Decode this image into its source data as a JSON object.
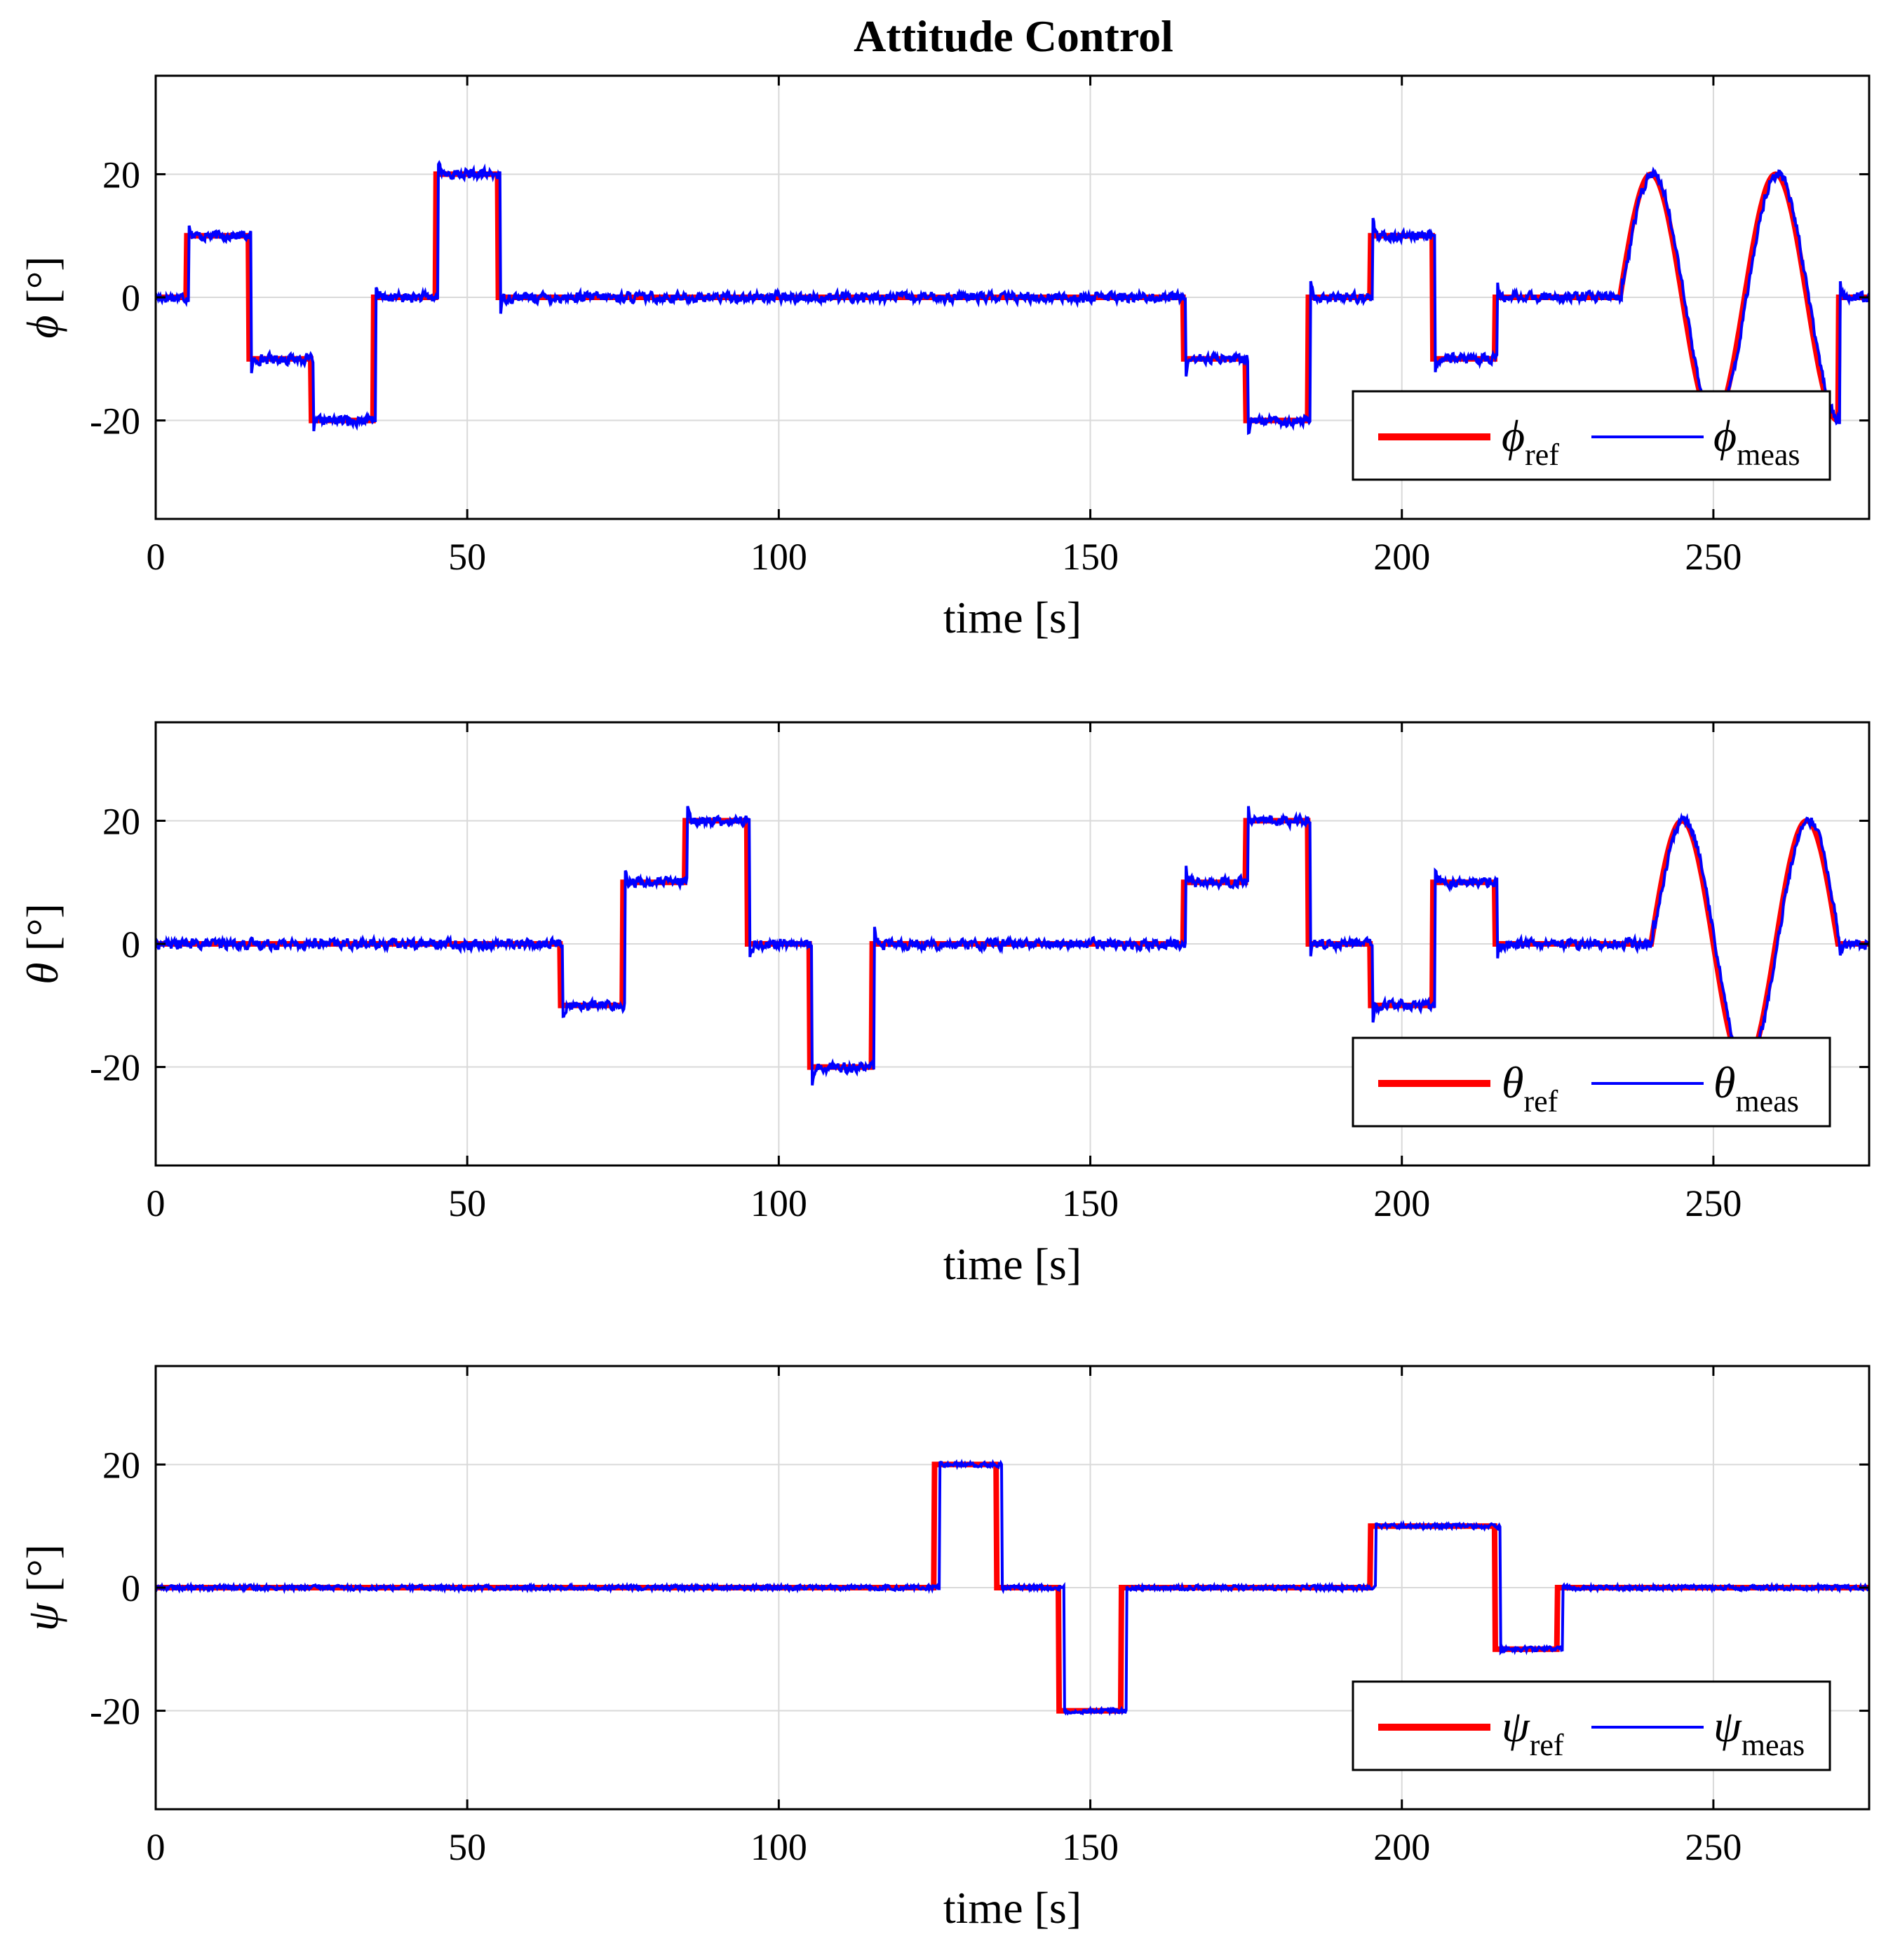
{
  "chart_data": {
    "title": "Attitude Control",
    "colors": {
      "ref": "#ff0000",
      "meas": "#0000ff",
      "grid": "#d9d9d9",
      "axis": "#000000"
    },
    "panels": [
      {
        "type": "line",
        "symbol": "ϕ",
        "ylabel_unit": " [°]",
        "xlabel": "time [s]",
        "xlim": [
          0,
          275
        ],
        "ylim": [
          -36,
          36
        ],
        "xticks": [
          0,
          50,
          100,
          150,
          200,
          250
        ],
        "xtick_labels": [
          "0",
          "50",
          "100",
          "150",
          "200",
          "250"
        ],
        "yticks": [
          20,
          0,
          -20
        ],
        "ytick_labels": [
          "20",
          "0",
          "-20"
        ],
        "grid": true,
        "legend_position": "bottom-right",
        "legend": [
          {
            "symbol": "ϕ",
            "subscript": "ref"
          },
          {
            "symbol": "ϕ",
            "subscript": "meas"
          }
        ],
        "series": [
          {
            "name": "ref",
            "segments": [
              {
                "kind": "step",
                "points": [
                  [
                    0,
                    0
                  ],
                  [
                    5,
                    10
                  ],
                  [
                    15,
                    -10
                  ],
                  [
                    25,
                    -20
                  ],
                  [
                    35,
                    0
                  ],
                  [
                    45,
                    20
                  ],
                  [
                    55,
                    0
                  ],
                  [
                    165,
                    -10
                  ],
                  [
                    175,
                    -20
                  ],
                  [
                    185,
                    0
                  ],
                  [
                    195,
                    10
                  ],
                  [
                    205,
                    -10
                  ],
                  [
                    215,
                    0
                  ],
                  [
                    235,
                    0
                  ]
                ]
              },
              {
                "kind": "sine",
                "start": 235,
                "end": 270,
                "amplitude": 20,
                "period": 20
              },
              {
                "kind": "step",
                "points": [
                  [
                    270,
                    0
                  ],
                  [
                    275,
                    0
                  ]
                ]
              }
            ]
          },
          {
            "name": "meas",
            "noise_std": 0.7,
            "derived_from": "ref",
            "overshoot_at_steps": 3,
            "lag_s": 0.3
          }
        ]
      },
      {
        "type": "line",
        "symbol": "θ",
        "ylabel_unit": " [°]",
        "xlabel": "time [s]",
        "xlim": [
          0,
          275
        ],
        "ylim": [
          -36,
          36
        ],
        "xticks": [
          0,
          50,
          100,
          150,
          200,
          250
        ],
        "xtick_labels": [
          "0",
          "50",
          "100",
          "150",
          "200",
          "250"
        ],
        "yticks": [
          20,
          0,
          -20
        ],
        "ytick_labels": [
          "20",
          "0",
          "-20"
        ],
        "grid": true,
        "legend_position": "bottom-right",
        "legend": [
          {
            "symbol": "θ",
            "subscript": "ref"
          },
          {
            "symbol": "θ",
            "subscript": "meas"
          }
        ],
        "series": [
          {
            "name": "ref",
            "segments": [
              {
                "kind": "step",
                "points": [
                  [
                    0,
                    0
                  ],
                  [
                    65,
                    -10
                  ],
                  [
                    75,
                    10
                  ],
                  [
                    85,
                    20
                  ],
                  [
                    95,
                    0
                  ],
                  [
                    105,
                    -20
                  ],
                  [
                    115,
                    0
                  ],
                  [
                    165,
                    10
                  ],
                  [
                    175,
                    20
                  ],
                  [
                    185,
                    0
                  ],
                  [
                    195,
                    -10
                  ],
                  [
                    205,
                    10
                  ],
                  [
                    215,
                    0
                  ],
                  [
                    240,
                    0
                  ]
                ]
              },
              {
                "kind": "sine",
                "start": 240,
                "end": 270,
                "amplitude": 20,
                "period": 20
              },
              {
                "kind": "step",
                "points": [
                  [
                    270,
                    0
                  ],
                  [
                    275,
                    0
                  ]
                ]
              }
            ]
          },
          {
            "name": "meas",
            "noise_std": 0.7,
            "derived_from": "ref",
            "overshoot_at_steps": 3,
            "lag_s": 0.3
          }
        ]
      },
      {
        "type": "line",
        "symbol": "ψ",
        "ylabel_unit": " [°]",
        "xlabel": "time [s]",
        "xlim": [
          0,
          275
        ],
        "ylim": [
          -36,
          36
        ],
        "xticks": [
          0,
          50,
          100,
          150,
          200,
          250
        ],
        "xtick_labels": [
          "0",
          "50",
          "100",
          "150",
          "200",
          "250"
        ],
        "yticks": [
          20,
          0,
          -20
        ],
        "ytick_labels": [
          "20",
          "0",
          "-20"
        ],
        "grid": true,
        "legend_position": "bottom-right",
        "legend": [
          {
            "symbol": "ψ",
            "subscript": "ref"
          },
          {
            "symbol": "ψ",
            "subscript": "meas"
          }
        ],
        "series": [
          {
            "name": "ref",
            "segments": [
              {
                "kind": "step",
                "points": [
                  [
                    0,
                    0
                  ],
                  [
                    125,
                    20
                  ],
                  [
                    135,
                    0
                  ],
                  [
                    145,
                    -20
                  ],
                  [
                    155,
                    0
                  ],
                  [
                    195,
                    10
                  ],
                  [
                    215,
                    -10
                  ],
                  [
                    225,
                    0
                  ],
                  [
                    275,
                    0
                  ]
                ]
              }
            ]
          },
          {
            "name": "meas",
            "noise_std": 0.3,
            "derived_from": "ref",
            "overshoot_at_steps": 0.5,
            "lag_s": 0.8
          }
        ]
      }
    ]
  }
}
